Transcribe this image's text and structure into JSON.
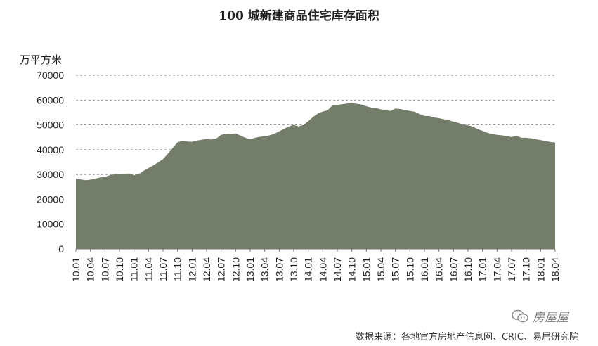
{
  "chart_data": {
    "type": "area",
    "title": "100 城新建商品住宅库存面积",
    "ylabel": "万平方米",
    "ylim": [
      0,
      70000
    ],
    "yticks": [
      0,
      10000,
      20000,
      30000,
      40000,
      50000,
      60000,
      70000
    ],
    "grid": true,
    "fill_color": "#747d69",
    "grid_color": "#888888",
    "xtick_labels": [
      "10.01",
      "10.04",
      "10.07",
      "10.10",
      "11.01",
      "11.04",
      "11.07",
      "11.10",
      "12.01",
      "12.04",
      "12.07",
      "12.10",
      "13.01",
      "13.04",
      "13.07",
      "13.10",
      "14.01",
      "14.04",
      "14.07",
      "14.10",
      "15.01",
      "15.04",
      "15.07",
      "15.10",
      "16.01",
      "16.04",
      "16.07",
      "16.10",
      "17.01",
      "17.04",
      "17.07",
      "17.10",
      "18.01",
      "18.04"
    ],
    "x": [
      "2010.01",
      "2010.02",
      "2010.03",
      "2010.04",
      "2010.05",
      "2010.06",
      "2010.07",
      "2010.08",
      "2010.09",
      "2010.10",
      "2010.11",
      "2010.12",
      "2011.01",
      "2011.02",
      "2011.03",
      "2011.04",
      "2011.05",
      "2011.06",
      "2011.07",
      "2011.08",
      "2011.09",
      "2011.10",
      "2011.11",
      "2011.12",
      "2012.01",
      "2012.02",
      "2012.03",
      "2012.04",
      "2012.05",
      "2012.06",
      "2012.07",
      "2012.08",
      "2012.09",
      "2012.10",
      "2012.11",
      "2012.12",
      "2013.01",
      "2013.02",
      "2013.03",
      "2013.04",
      "2013.05",
      "2013.06",
      "2013.07",
      "2013.08",
      "2013.09",
      "2013.10",
      "2013.11",
      "2013.12",
      "2014.01",
      "2014.02",
      "2014.03",
      "2014.04",
      "2014.05",
      "2014.06",
      "2014.07",
      "2014.08",
      "2014.09",
      "2014.10",
      "2014.11",
      "2014.12",
      "2015.01",
      "2015.02",
      "2015.03",
      "2015.04",
      "2015.05",
      "2015.06",
      "2015.07",
      "2015.08",
      "2015.09",
      "2015.10",
      "2015.11",
      "2015.12",
      "2016.01",
      "2016.02",
      "2016.03",
      "2016.04",
      "2016.05",
      "2016.06",
      "2016.07",
      "2016.08",
      "2016.09",
      "2016.10",
      "2016.11",
      "2016.12",
      "2017.01",
      "2017.02",
      "2017.03",
      "2017.04",
      "2017.05",
      "2017.06",
      "2017.07",
      "2017.08",
      "2017.09",
      "2017.10",
      "2017.11",
      "2017.12",
      "2018.01",
      "2018.02",
      "2018.03",
      "2018.04"
    ],
    "values": [
      28300,
      28000,
      27700,
      27900,
      28300,
      28800,
      29100,
      29700,
      30100,
      30200,
      30300,
      30400,
      29700,
      30200,
      31500,
      32600,
      33700,
      34900,
      36200,
      38400,
      40700,
      43000,
      43600,
      43300,
      43200,
      43700,
      44000,
      44300,
      44100,
      44500,
      46000,
      46400,
      46200,
      46600,
      45700,
      44800,
      44200,
      44800,
      45200,
      45400,
      45800,
      46400,
      47400,
      48400,
      49400,
      50000,
      49400,
      50000,
      51500,
      53200,
      54600,
      55400,
      55900,
      57900,
      58100,
      58300,
      58600,
      58800,
      58500,
      58200,
      57500,
      57000,
      56700,
      56300,
      56000,
      55600,
      56600,
      56400,
      56000,
      55600,
      55300,
      54300,
      53600,
      53600,
      53000,
      52700,
      52300,
      51900,
      51300,
      50800,
      50100,
      49800,
      49300,
      48300,
      47600,
      46800,
      46300,
      46000,
      45800,
      45500,
      45100,
      45700,
      44800,
      44800,
      44600,
      44200,
      43900,
      43500,
      43100,
      42900
    ]
  },
  "watermark": {
    "icon": "wechat-icon",
    "text": "房屋屋"
  },
  "source_note": "数据来源：各地官方房地产信息网、CRIC、易居研究院"
}
